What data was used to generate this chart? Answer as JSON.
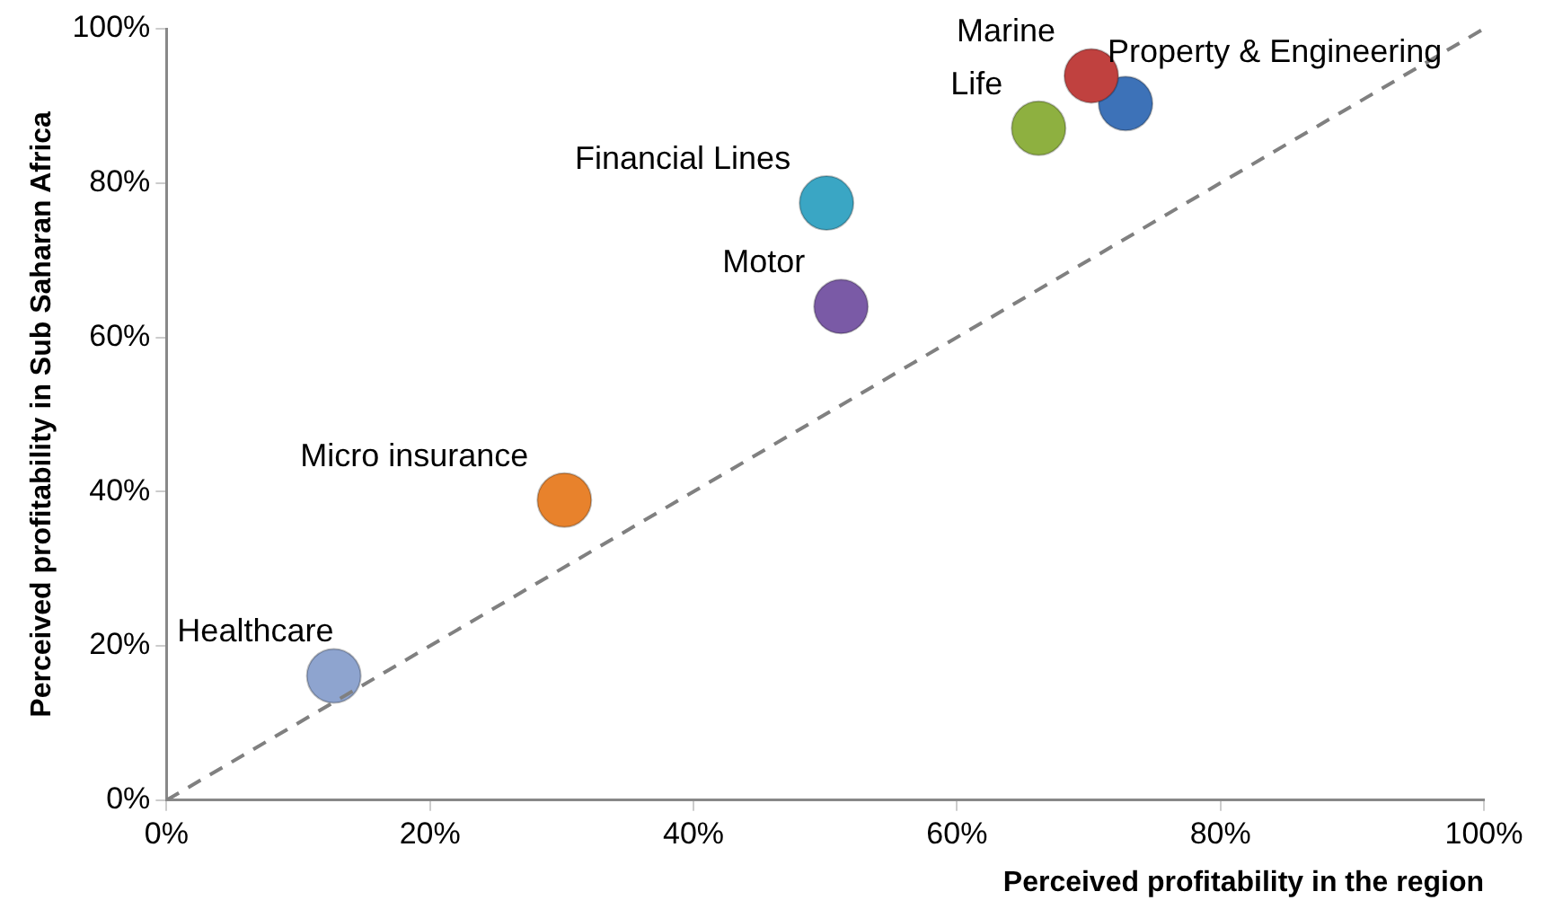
{
  "chart_data": {
    "type": "scatter",
    "xlabel": "Perceived profitability in the region",
    "ylabel": "Perceived profitability in Sub Saharan Africa",
    "xlim": [
      0,
      100
    ],
    "ylim": [
      0,
      100
    ],
    "xticks": [
      {
        "value": 0,
        "label": "0%"
      },
      {
        "value": 20,
        "label": "20%"
      },
      {
        "value": 40,
        "label": "40%"
      },
      {
        "value": 60,
        "label": "60%"
      },
      {
        "value": 80,
        "label": "80%"
      },
      {
        "value": 100,
        "label": "100%"
      }
    ],
    "yticks": [
      {
        "value": 0,
        "label": "0%"
      },
      {
        "value": 20,
        "label": "20%"
      },
      {
        "value": 40,
        "label": "40%"
      },
      {
        "value": 60,
        "label": "60%"
      },
      {
        "value": 80,
        "label": "80%"
      },
      {
        "value": 100,
        "label": "100%"
      }
    ],
    "grid": false,
    "legend": false,
    "marker": "circle",
    "series": [
      {
        "type": "line",
        "x": [
          0,
          100
        ],
        "values": [
          0,
          100
        ],
        "color": "#808080",
        "line_style": "dashed",
        "marker": "none"
      },
      {
        "name": "Healthcare",
        "x": [
          12.7
        ],
        "values": [
          16.1
        ],
        "color": "#8ea4cf"
      },
      {
        "name": "Micro insurance",
        "x": [
          30.2
        ],
        "values": [
          38.9
        ],
        "color": "#e8822c"
      },
      {
        "name": "Financial Lines",
        "x": [
          50.1
        ],
        "values": [
          77.4
        ],
        "color": "#3aa6c4"
      },
      {
        "name": "Motor",
        "x": [
          51.2
        ],
        "values": [
          64.0
        ],
        "color": "#7a5aa6"
      },
      {
        "name": "Life",
        "x": [
          66.2
        ],
        "values": [
          87.1
        ],
        "color": "#8eb040"
      },
      {
        "name": "Marine",
        "x": [
          70.2
        ],
        "values": [
          93.9
        ],
        "color": "#c0413f"
      },
      {
        "name": "Property & Engineering",
        "x": [
          72.8
        ],
        "values": [
          90.3
        ],
        "color": "#3d72b8"
      }
    ]
  }
}
